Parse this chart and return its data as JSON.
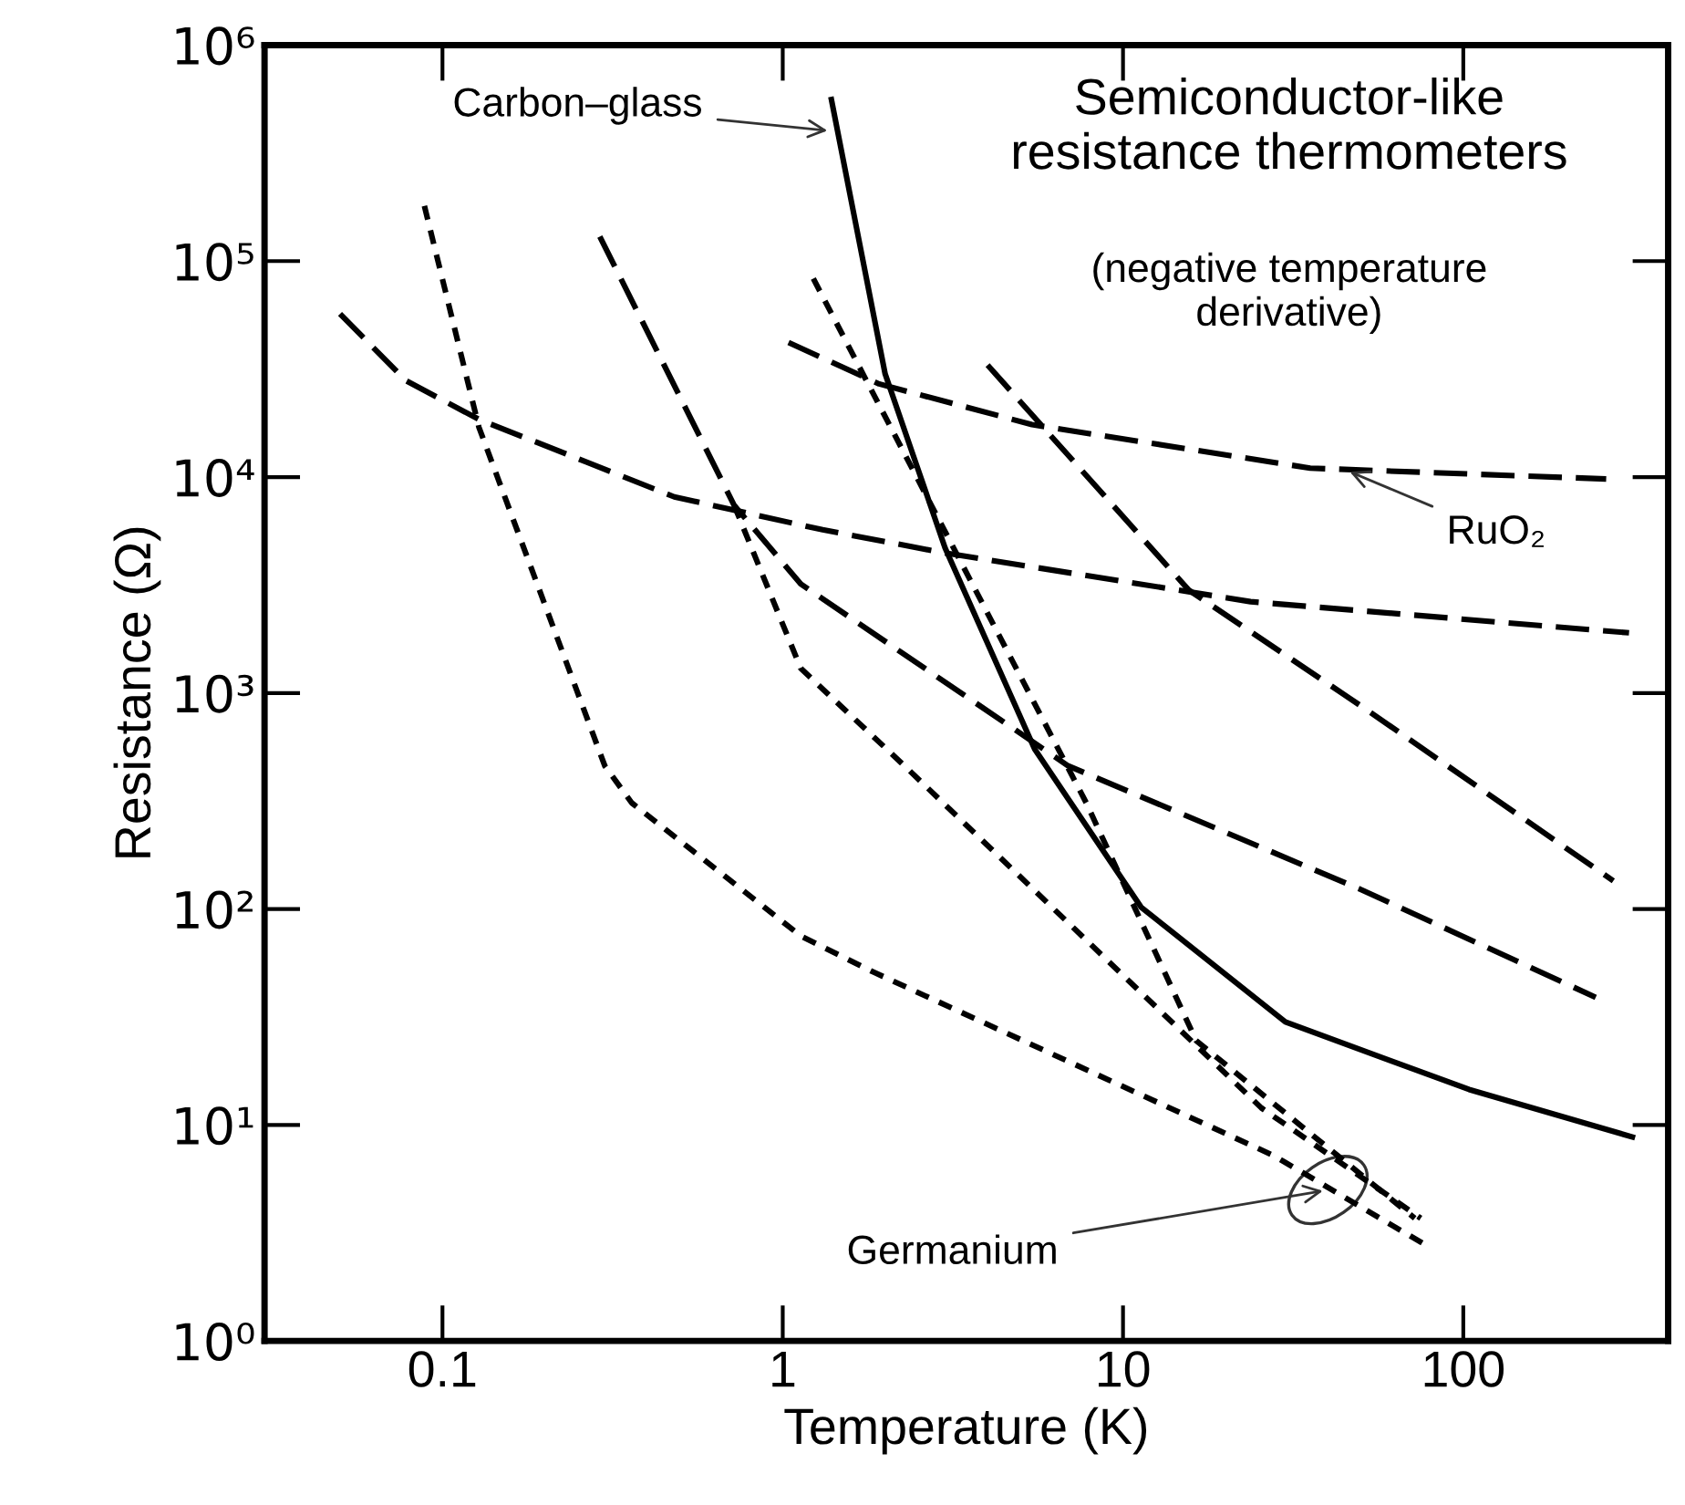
{
  "chart_data": {
    "type": "line",
    "title": "Semiconductor-like\nresistance thermometers",
    "subtitle": "(negative temperature\nderivative)",
    "xlabel": "Temperature (K)",
    "ylabel": "Resistance (Ω)",
    "log": "xy",
    "grid": false,
    "xlim": [
      0.03,
      400
    ],
    "ylim": [
      1,
      1000000
    ],
    "xticks": [
      0.1,
      1,
      10,
      100
    ],
    "yticks": [
      {
        "value": 1,
        "label": "10⁰"
      },
      {
        "value": 10,
        "label": "10¹"
      },
      {
        "value": 100,
        "label": "10²"
      },
      {
        "value": 1000,
        "label": "10³"
      },
      {
        "value": 10000,
        "label": "10⁴"
      },
      {
        "value": 100000,
        "label": "10⁵"
      },
      {
        "value": 1000000,
        "label": "10⁶"
      }
    ],
    "series": [
      {
        "color": "#000000",
        "line_style": "solid",
        "x": [
          1.39,
          2.0,
          3.0,
          5.5,
          11.3,
          30,
          104,
          314
        ],
        "values": [
          560000,
          30000,
          4700,
          550,
          102,
          30,
          14.6,
          8.8
        ]
      },
      {
        "color": "#000000",
        "line_style": "dotted",
        "x": [
          0.0885,
          0.128,
          0.3,
          0.36,
          1.13,
          1.85,
          27.8,
          80
        ],
        "values": [
          180000,
          17000,
          460,
          310,
          75,
          51,
          7.2,
          2.7
        ]
      },
      {
        "color": "#000000",
        "line_style": "dotted",
        "x": [
          1.23,
          7.8,
          16.4,
          72
        ],
        "values": [
          83000,
          310,
          24.6,
          3.7
        ]
      },
      {
        "color": "#000000",
        "line_style": "dotted",
        "x": [
          0.72,
          1.13,
          2.28,
          25.5,
          75
        ],
        "values": [
          7400,
          1300,
          460,
          12,
          3.7
        ]
      },
      {
        "color": "#000000",
        "line_style": "dashed",
        "x": [
          0.29,
          0.72,
          1.13,
          6.9,
          49.5,
          245
        ],
        "values": [
          130000,
          7400,
          3200,
          460,
          124,
          39
        ]
      },
      {
        "color": "#000000",
        "line_style": "dashed",
        "x": [
          4.0,
          15.6,
          53,
          276
        ],
        "values": [
          33000,
          3000,
          820,
          135
        ]
      },
      {
        "color": "#000000",
        "line_style": "dashed",
        "x": [
          0.05,
          0.078,
          0.128,
          0.48,
          1.31,
          3.0,
          23.7,
          307
        ],
        "values": [
          57000,
          28000,
          18500,
          8100,
          5700,
          4450,
          2650,
          1900
        ]
      },
      {
        "color": "#000000",
        "line_style": "dashed",
        "x": [
          1.04,
          1.92,
          5.4,
          35.5,
          263
        ],
        "values": [
          42000,
          27000,
          17500,
          11000,
          9800
        ]
      }
    ],
    "annotations": [
      {
        "text": "Carbon–glass",
        "x": 1.4,
        "y": 400000
      },
      {
        "text": "RuO₂",
        "x": 45,
        "y": 10800
      },
      {
        "text": "Germanium",
        "x": 40,
        "y": 5
      }
    ]
  }
}
